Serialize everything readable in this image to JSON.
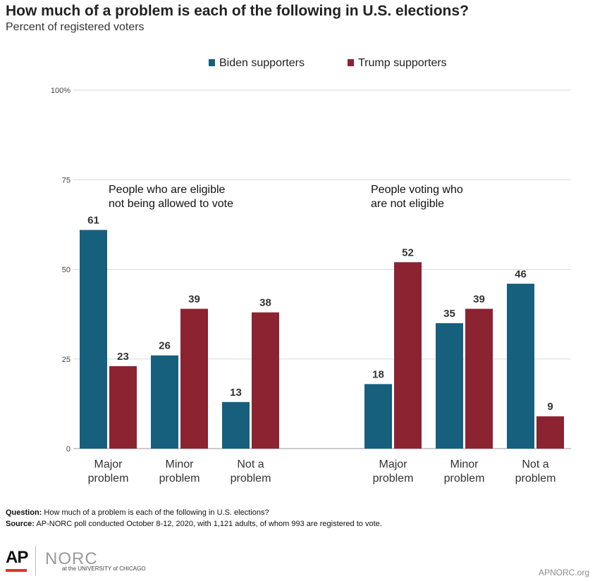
{
  "title": "How much of a problem is each of the following in U.S. elections?",
  "subtitle": "Percent of registered voters",
  "colors": {
    "biden": "#16607e",
    "trump": "#8b2331",
    "grid": "#d9d9d9"
  },
  "chart_data": {
    "type": "bar",
    "ylim": [
      0,
      100
    ],
    "yticks": [
      0,
      25,
      50,
      75,
      100
    ],
    "ytick_labels": [
      "0",
      "25",
      "50",
      "75",
      "100%"
    ],
    "legend": [
      "Biden supporters",
      "Trump supporters"
    ],
    "legend_position": "top",
    "groups": [
      {
        "label": [
          "People who are eligible",
          "not being allowed to vote"
        ],
        "categories": [
          [
            "Major",
            "problem"
          ],
          [
            "Minor",
            "problem"
          ],
          [
            "Not a",
            "problem"
          ]
        ],
        "series": [
          {
            "name": "Biden supporters",
            "values": [
              61,
              26,
              13
            ]
          },
          {
            "name": "Trump supporters",
            "values": [
              23,
              39,
              38
            ]
          }
        ]
      },
      {
        "label": [
          "People voting who",
          "are not eligible"
        ],
        "categories": [
          [
            "Major",
            "problem"
          ],
          [
            "Minor",
            "problem"
          ],
          [
            "Not a",
            "problem"
          ]
        ],
        "series": [
          {
            "name": "Biden supporters",
            "values": [
              18,
              35,
              46
            ]
          },
          {
            "name": "Trump supporters",
            "values": [
              52,
              39,
              9
            ]
          }
        ]
      }
    ]
  },
  "footer": {
    "question_label": "Question:",
    "question_text": "How much of a problem is each of the following in U.S. elections?",
    "source_label": "Source:",
    "source_text": "AP-NORC poll conducted October 8-12, 2020, with 1,121 adults, of whom 993 are registered to vote."
  },
  "logos": {
    "ap": "AP",
    "norc": "NORC",
    "norc_sub": "at the UNIVERSITY of CHICAGO",
    "site": "APNORC.org"
  }
}
